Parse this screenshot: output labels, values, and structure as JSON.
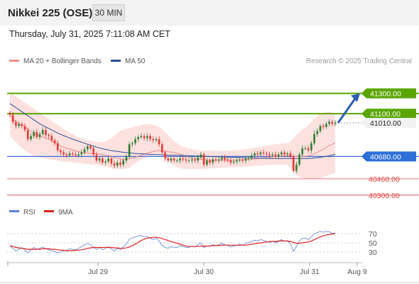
{
  "header": {
    "title": "Nikkei 225 (OSE)",
    "timeframe": "30 MIN"
  },
  "datetime": "Thursday, July 31, 2025 7:11:08 AM CET",
  "legend_main": [
    {
      "label": "MA 20 + Bollinger Bands",
      "color": "#ef8a8a"
    },
    {
      "label": "MA 50",
      "color": "#2b4f8e"
    }
  ],
  "legend_rsi": [
    {
      "label": "RSI",
      "color": "#5b7fd6"
    },
    {
      "label": "9MA",
      "color": "#e02020"
    }
  ],
  "copyright": "Research © 2025 Trading Central",
  "colors": {
    "up_candle": "#2e7d32",
    "down_candle": "#e53935",
    "resistance": "#5aa500",
    "support": "#2e6fd8",
    "pivot": "#3b6ed8",
    "minor_support": "#e84c4c",
    "arrow": "#2a5db0"
  },
  "chart_data": [
    {
      "type": "candlestick",
      "x_ticks": [
        "Jul 29",
        "Jul 30",
        "Jul 31",
        "Aug 9"
      ],
      "ylim": [
        40250,
        41450
      ],
      "levels": [
        {
          "value": 41300,
          "label": "41300.00",
          "kind": "resistance"
        },
        {
          "value": 41100,
          "label": "41100.00",
          "kind": "resistance"
        },
        {
          "value": 41010,
          "label": "41010.00",
          "kind": "last"
        },
        {
          "value": 40680,
          "label": "40680.00",
          "kind": "pivot"
        },
        {
          "value": 40460,
          "label": "40460.00",
          "kind": "support"
        },
        {
          "value": 40300,
          "label": "40300.00",
          "kind": "support"
        }
      ],
      "close": [
        41090,
        41020,
        40980,
        41000,
        40980,
        40940,
        40850,
        40880,
        40920,
        40870,
        40900,
        40940,
        40890,
        40880,
        40840,
        40810,
        40740,
        40720,
        40700,
        40690,
        40710,
        40700,
        40690,
        40700,
        40720,
        40750,
        40780,
        40760,
        40700,
        40640,
        40660,
        40620,
        40630,
        40660,
        40610,
        40590,
        40620,
        40600,
        40640,
        40680,
        40800,
        40810,
        40850,
        40870,
        40880,
        40860,
        40880,
        40850,
        40840,
        40850,
        40800,
        40720,
        40660,
        40640,
        40660,
        40640,
        40640,
        40660,
        40650,
        40640,
        40640,
        40650,
        40640,
        40670,
        40700,
        40600,
        40640,
        40620,
        40650,
        40640,
        40650,
        40670,
        40650,
        40640,
        40620,
        40630,
        40640,
        40650,
        40640,
        40660,
        40670,
        40690,
        40710,
        40700,
        40720,
        40710,
        40700,
        40690,
        40700,
        40680,
        40700,
        40720,
        40700,
        40710,
        40680,
        40540,
        40600,
        40700,
        40760,
        40760,
        40740,
        40810,
        40900,
        40930,
        40980,
        40970,
        41000,
        41020,
        41000,
        41010
      ],
      "series": [
        {
          "name": "MA 20",
          "values": [
            41080,
            41050,
            41020,
            41000,
            40990,
            40970,
            40950,
            40930,
            40910,
            40890,
            40880,
            40870,
            40860,
            40850,
            40835,
            40815,
            40795,
            40780,
            40770,
            40760,
            40755,
            40745,
            40735,
            40728,
            40722,
            40718,
            40712,
            40710,
            40708,
            40706,
            40702,
            40698,
            40693,
            40688,
            40680,
            40670,
            40662,
            40655,
            40650,
            40650,
            40658,
            40664,
            40672,
            40682,
            40692,
            40702,
            40713,
            40720,
            40728,
            40734,
            40738,
            40736,
            40732,
            40726,
            40722,
            40718,
            40712,
            40704,
            40694,
            40684,
            40673,
            40664,
            40656,
            40653,
            40652,
            40648,
            40646,
            40645,
            40644,
            40644,
            40643,
            40643,
            40642,
            40642,
            40643,
            40644,
            40645,
            40645,
            40646,
            40648,
            40650,
            40652,
            40655,
            40658,
            40662,
            40666,
            40670,
            40673,
            40676,
            40679,
            40682,
            40685,
            40687,
            40688,
            40686,
            40682,
            40679,
            40678,
            40680,
            40682,
            40686,
            40694,
            40706,
            40720,
            40736,
            40752,
            40770,
            40788,
            40800,
            40815
          ]
        },
        {
          "name": "Bollinger Upper",
          "values": [
            41300,
            41290,
            41270,
            41250,
            41230,
            41210,
            41190,
            41170,
            41150,
            41130,
            41110,
            41090,
            41070,
            41050,
            41030,
            41010,
            40990,
            40970,
            40950,
            40930,
            40915,
            40900,
            40885,
            40870,
            40855,
            40845,
            40840,
            40835,
            40830,
            40825,
            40820,
            40822,
            40828,
            40840,
            40860,
            40885,
            40910,
            40930,
            40945,
            40952,
            40960,
            40968,
            40975,
            40980,
            40990,
            40995,
            40998,
            40997,
            40992,
            40982,
            40970,
            40950,
            40920,
            40890,
            40860,
            40830,
            40810,
            40790,
            40775,
            40765,
            40757,
            40750,
            40745,
            40742,
            40740,
            40738,
            40737,
            40736,
            40735,
            40735,
            40735,
            40735,
            40735,
            40736,
            40738,
            40740,
            40742,
            40745,
            40748,
            40752,
            40756,
            40760,
            40765,
            40770,
            40776,
            40782,
            40788,
            40793,
            40797,
            40800,
            40803,
            40806,
            40808,
            40811,
            40830,
            40860,
            40890,
            40920,
            40945,
            40965,
            40990,
            41020,
            41050,
            41080,
            41100,
            41110,
            41115,
            41115,
            41110,
            41105
          ]
        },
        {
          "name": "Bollinger Lower",
          "values": [
            40880,
            40850,
            40820,
            40790,
            40765,
            40740,
            40720,
            40705,
            40690,
            40680,
            40672,
            40664,
            40658,
            40652,
            40647,
            40642,
            40638,
            40634,
            40630,
            40627,
            40624,
            40621,
            40618,
            40615,
            40612,
            40609,
            40606,
            40603,
            40600,
            40596,
            40591,
            40585,
            40578,
            40572,
            40566,
            40560,
            40556,
            40554,
            40555,
            40560,
            40570,
            40590,
            40612,
            40632,
            40648,
            40664,
            40676,
            40684,
            40690,
            40693,
            40695,
            40690,
            40670,
            40640,
            40610,
            40590,
            40575,
            40565,
            40560,
            40557,
            40556,
            40555,
            40555,
            40556,
            40557,
            40558,
            40560,
            40562,
            40564,
            40566,
            40568,
            40570,
            40571,
            40572,
            40573,
            40574,
            40575,
            40577,
            40579,
            40581,
            40583,
            40585,
            40587,
            40589,
            40591,
            40593,
            40595,
            40597,
            40598,
            40599,
            40600,
            40601,
            40602,
            40600,
            40570,
            40530,
            40500,
            40480,
            40470,
            40465,
            40460,
            40460,
            40462,
            40465,
            40470,
            40480,
            40490,
            40500,
            40510,
            40520
          ]
        },
        {
          "name": "MA 50",
          "values": [
            41200,
            41180,
            41160,
            41140,
            41120,
            41100,
            41080,
            41060,
            41040,
            41020,
            41000,
            40985,
            40970,
            40955,
            40940,
            40925,
            40910,
            40897,
            40885,
            40873,
            40862,
            40851,
            40840,
            40830,
            40820,
            40810,
            40800,
            40790,
            40781,
            40772,
            40764,
            40756,
            40749,
            40743,
            40738,
            40733,
            40729,
            40725,
            40721,
            40718,
            40715,
            40712,
            40710,
            40708,
            40706,
            40704,
            40702,
            40700,
            40699,
            40698,
            40697,
            40696,
            40695,
            40694,
            40693,
            40692,
            40691,
            40690,
            40689,
            40688,
            40687,
            40686,
            40685,
            40684,
            40683,
            40682,
            40681,
            40680,
            40679,
            40678,
            40677,
            40676,
            40675,
            40674,
            40673,
            40672,
            40671,
            40670,
            40669,
            40668,
            40667,
            40666,
            40665,
            40664,
            40663,
            40662,
            40661,
            40660,
            40660,
            40660,
            40660,
            40660,
            40660,
            40660,
            40660,
            40660,
            40660,
            40660,
            40660,
            40660,
            40660,
            40662,
            40665,
            40668,
            40672,
            40676,
            40681,
            40687,
            40693,
            40700
          ]
        }
      ]
    },
    {
      "type": "line",
      "title": "RSI",
      "y_ticks": [
        70,
        50,
        30
      ],
      "ylim": [
        10,
        90
      ],
      "series": [
        {
          "name": "RSI",
          "values": [
            44,
            38,
            33,
            36,
            40,
            34,
            28,
            35,
            40,
            36,
            38,
            41,
            37,
            35,
            33,
            31,
            28,
            30,
            33,
            34,
            37,
            36,
            35,
            38,
            42,
            46,
            48,
            46,
            40,
            36,
            40,
            35,
            38,
            42,
            36,
            33,
            38,
            35,
            42,
            47,
            58,
            60,
            63,
            65,
            66,
            62,
            64,
            60,
            57,
            60,
            54,
            44,
            40,
            38,
            42,
            40,
            40,
            44,
            42,
            40,
            40,
            43,
            41,
            46,
            50,
            39,
            44,
            42,
            46,
            44,
            46,
            49,
            46,
            44,
            41,
            43,
            45,
            47,
            45,
            49,
            51,
            53,
            56,
            54,
            57,
            55,
            53,
            51,
            54,
            50,
            53,
            57,
            53,
            55,
            48,
            32,
            42,
            54,
            60,
            60,
            57,
            63,
            70,
            72,
            75,
            73,
            75,
            74,
            70,
            72
          ]
        },
        {
          "name": "9MA",
          "values": [
            44,
            42,
            40,
            39,
            38,
            37,
            36,
            36,
            36,
            36,
            36,
            37,
            37,
            37,
            36,
            36,
            35,
            34,
            34,
            33,
            33,
            33,
            34,
            34,
            35,
            36,
            38,
            39,
            40,
            40,
            40,
            40,
            40,
            40,
            40,
            39,
            39,
            38,
            38,
            39,
            41,
            44,
            47,
            51,
            55,
            58,
            60,
            61,
            62,
            62,
            61,
            59,
            57,
            55,
            53,
            51,
            49,
            47,
            45,
            43,
            42,
            42,
            42,
            42,
            43,
            43,
            43,
            43,
            44,
            44,
            44,
            45,
            45,
            45,
            45,
            45,
            45,
            45,
            45,
            45,
            46,
            47,
            48,
            49,
            50,
            51,
            52,
            53,
            53,
            53,
            54,
            54,
            54,
            54,
            53,
            51,
            49,
            49,
            50,
            51,
            52,
            54,
            57,
            60,
            63,
            65,
            67,
            68,
            69,
            70
          ]
        }
      ]
    }
  ]
}
